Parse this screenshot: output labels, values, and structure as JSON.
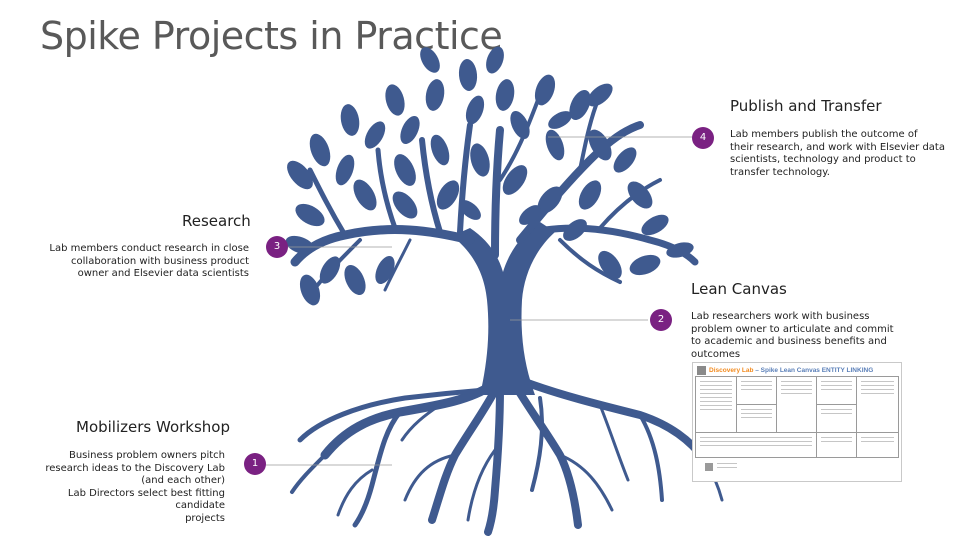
{
  "slide": {
    "title": "Spike Projects in Practice"
  },
  "colors": {
    "tree": "#3f5a8f",
    "badge": "#7a2182",
    "title": "#595959"
  },
  "steps": [
    {
      "number": "1",
      "heading": "Mobilizers Workshop",
      "lines": [
        "Business problem owners pitch",
        "research ideas to the Discovery Lab",
        "(and each other)",
        "Lab Directors select best fitting candidate",
        "projects"
      ]
    },
    {
      "number": "2",
      "heading": "Lean Canvas",
      "lines": [
        "Lab researchers work with business",
        "problem owner to articulate and commit",
        "to academic and business benefits and",
        "outcomes"
      ]
    },
    {
      "number": "3",
      "heading": "Research",
      "lines": [
        "Lab members conduct research in close",
        "collaboration with business product",
        "owner and Elsevier data scientists"
      ]
    },
    {
      "number": "4",
      "heading": "Publish and Transfer",
      "lines": [
        "Lab members publish the outcome of",
        "their research, and work with Elsevier data",
        "scientists, technology and product to",
        "transfer technology."
      ]
    }
  ],
  "canvas_thumbnail": {
    "brand": "Discovery Lab",
    "title": "– Spike Lean Canvas ENTITY LINKING",
    "brand_color": "#f28a1e"
  }
}
